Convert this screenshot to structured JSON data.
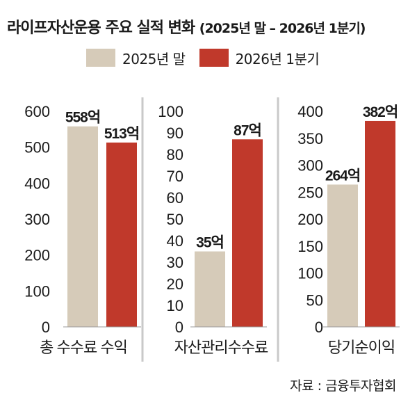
{
  "title": "라이프자산운용 주요 실적 변화",
  "subtitle": "(2025년 말 – 2026년 1분기)",
  "source": "자료 : 금융투자협회",
  "colors": {
    "s2025": "#d6cbb9",
    "s2026": "#c0392b",
    "divider": "#c9c9c9"
  },
  "chart_data": [
    {
      "type": "bar",
      "xlabel": "총 수수료 수익",
      "ylim": [
        0,
        600
      ],
      "ticks": [
        "0",
        "100",
        "200",
        "300",
        "400",
        "500",
        "600"
      ],
      "series": [
        {
          "name": "2025년 말",
          "values": [
            558
          ],
          "labels": [
            "558억"
          ]
        },
        {
          "name": "2026년 1분기",
          "values": [
            513
          ],
          "labels": [
            "513억"
          ]
        }
      ]
    },
    {
      "type": "bar",
      "xlabel": "자산관리수수료",
      "ylim": [
        0,
        100
      ],
      "ticks": [
        "0",
        "10",
        "20",
        "30",
        "40",
        "50",
        "60",
        "70",
        "80",
        "90",
        "100"
      ],
      "series": [
        {
          "name": "2025년 말",
          "values": [
            35
          ],
          "labels": [
            "35억"
          ]
        },
        {
          "name": "2026년 1분기",
          "values": [
            87
          ],
          "labels": [
            "87억"
          ]
        }
      ]
    },
    {
      "type": "bar",
      "xlabel": "당기순이익",
      "ylim": [
        0,
        400
      ],
      "ticks": [
        "0",
        "50",
        "100",
        "150",
        "200",
        "250",
        "300",
        "350",
        "400"
      ],
      "series": [
        {
          "name": "2025년 말",
          "values": [
            264
          ],
          "labels": [
            "264억"
          ]
        },
        {
          "name": "2026년 1분기",
          "values": [
            382
          ],
          "labels": [
            "382억"
          ]
        }
      ]
    }
  ]
}
